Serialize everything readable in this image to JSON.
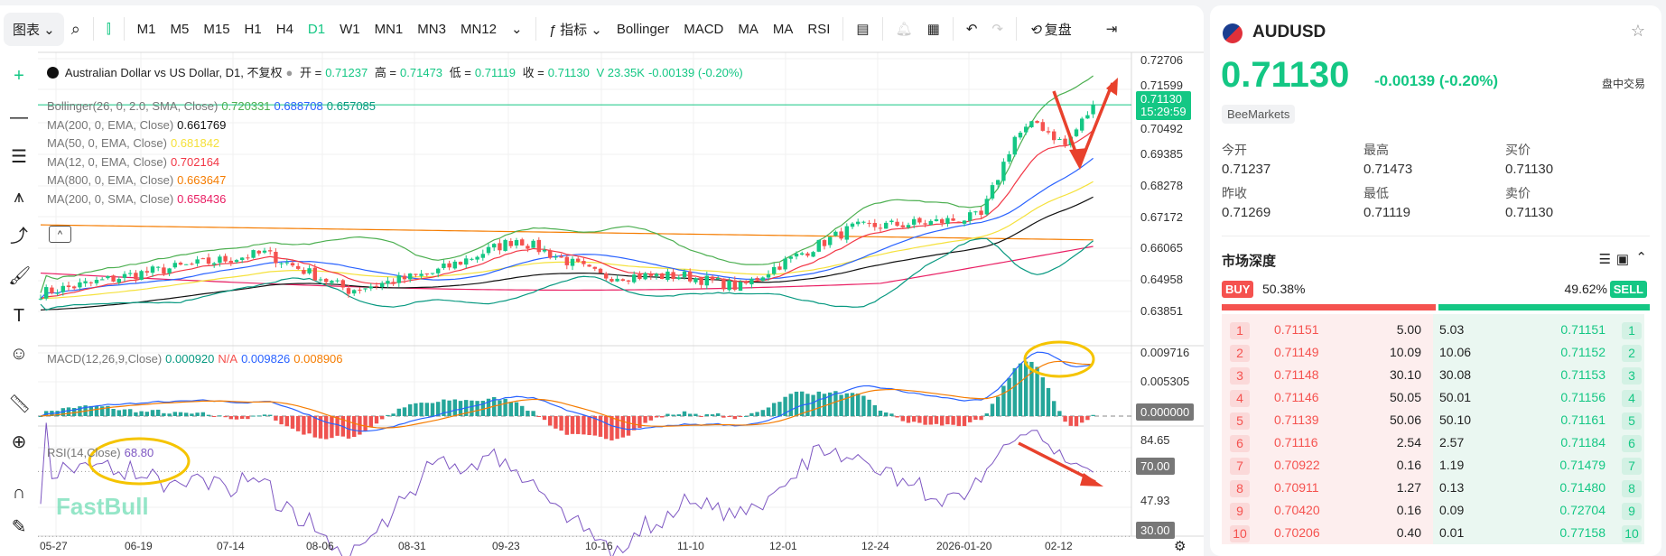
{
  "toolbar": {
    "chart_menu": "图表",
    "timeframes": [
      "M1",
      "M5",
      "M15",
      "H1",
      "H4",
      "D1",
      "W1",
      "MN1",
      "MN3",
      "MN12"
    ],
    "active_timeframe": "D1",
    "indicators_label": "指标",
    "quick_indicators": [
      "Bollinger",
      "MACD",
      "MA",
      "MA",
      "RSI"
    ],
    "replay_label": "复盘"
  },
  "legend": {
    "title": "Australian Dollar vs US Dollar, D1, 不复权",
    "open_label": "开 =",
    "open": "0.71237",
    "high_label": "高 =",
    "high": "0.71473",
    "low_label": "低 =",
    "low": "0.71119",
    "close_label": "收 =",
    "close": "0.71130",
    "volume": "V 23.35K",
    "change": "-0.00139 (-0.20%)"
  },
  "indicators": [
    {
      "label": "Bollinger(26, 0, 2.0, SMA, Close)",
      "values": [
        {
          "v": "0.720331",
          "c": "#4caf50"
        },
        {
          "v": "0.688708",
          "c": "#2962ff"
        },
        {
          "v": "0.657085",
          "c": "#089981"
        }
      ]
    },
    {
      "label": "MA(200, 0, EMA, Close)",
      "values": [
        {
          "v": "0.661769",
          "c": "#111111"
        }
      ]
    },
    {
      "label": "MA(50, 0, EMA, Close)",
      "values": [
        {
          "v": "0.681842",
          "c": "#f5e13b"
        }
      ]
    },
    {
      "label": "MA(12, 0, EMA, Close)",
      "values": [
        {
          "v": "0.702164",
          "c": "#f23645"
        }
      ]
    },
    {
      "label": "MA(800, 0, EMA, Close)",
      "values": [
        {
          "v": "0.663647",
          "c": "#f57c00"
        }
      ]
    },
    {
      "label": "MA(200, 0, SMA, Close)",
      "values": [
        {
          "v": "0.658436",
          "c": "#e91e63"
        }
      ]
    }
  ],
  "macd": {
    "label": "MACD(12,26,9,Close)",
    "hist": "0.000920",
    "na": "N/A",
    "macd": "0.009826",
    "signal": "0.008906"
  },
  "rsi": {
    "label": "RSI(14,Close)",
    "value": "68.80"
  },
  "price_axis": [
    "0.72706",
    "0.71599",
    "0.70492",
    "0.69385",
    "0.68278",
    "0.67172",
    "0.66065",
    "0.64958",
    "0.63851"
  ],
  "price_tag": {
    "price": "0.71130",
    "countdown": "15:29:59"
  },
  "macd_axis": [
    "0.009716",
    "0.005305"
  ],
  "macd_tag": "0.000000",
  "rsi_axis": [
    "84.65",
    "47.93"
  ],
  "rsi_tag_70": "70.00",
  "rsi_tag_30": "30.00",
  "dates": [
    "05-27",
    "06-19",
    "07-14",
    "08-06",
    "08-31",
    "09-23",
    "10-16",
    "11-10",
    "12-01",
    "12-24",
    "2026-01-20",
    "02-12"
  ],
  "watermark": "FastBull",
  "colors": {
    "up": "#14c784",
    "down": "#f5524f",
    "annotation_arrow": "#e8412c",
    "annotation_circle": "#f5c400"
  },
  "symbol": {
    "name": "AUDUSD",
    "price": "0.71130",
    "change": "-0.00139",
    "change_pct": "(-0.20%)",
    "session": "盘中交易",
    "broker": "BeeMarkets"
  },
  "stats": [
    {
      "label": "今开",
      "value": "0.71237"
    },
    {
      "label": "最高",
      "value": "0.71473"
    },
    {
      "label": "买价",
      "value": "0.71130"
    },
    {
      "label": "昨收",
      "value": "0.71269"
    },
    {
      "label": "最低",
      "value": "0.71119"
    },
    {
      "label": "卖价",
      "value": "0.71130"
    }
  ],
  "depth": {
    "title": "市场深度",
    "buy_label": "BUY",
    "buy_pct": "50.38%",
    "sell_label": "SELL",
    "sell_pct": "49.62%",
    "buy_ratio": 50.38,
    "rows": [
      {
        "n": "1",
        "bid": "0.71151",
        "bid_vol": "5.00",
        "ask_vol": "5.03",
        "ask": "0.71151"
      },
      {
        "n": "2",
        "bid": "0.71149",
        "bid_vol": "10.09",
        "ask_vol": "10.06",
        "ask": "0.71152"
      },
      {
        "n": "3",
        "bid": "0.71148",
        "bid_vol": "30.10",
        "ask_vol": "30.08",
        "ask": "0.71153"
      },
      {
        "n": "4",
        "bid": "0.71146",
        "bid_vol": "50.05",
        "ask_vol": "50.01",
        "ask": "0.71156"
      },
      {
        "n": "5",
        "bid": "0.71139",
        "bid_vol": "50.06",
        "ask_vol": "50.10",
        "ask": "0.71161"
      },
      {
        "n": "6",
        "bid": "0.71116",
        "bid_vol": "2.54",
        "ask_vol": "2.57",
        "ask": "0.71184"
      },
      {
        "n": "7",
        "bid": "0.70922",
        "bid_vol": "0.16",
        "ask_vol": "1.19",
        "ask": "0.71479"
      },
      {
        "n": "8",
        "bid": "0.70911",
        "bid_vol": "1.27",
        "ask_vol": "0.13",
        "ask": "0.71480"
      },
      {
        "n": "9",
        "bid": "0.70420",
        "bid_vol": "0.16",
        "ask_vol": "0.09",
        "ask": "0.72704"
      },
      {
        "n": "10",
        "bid": "0.70206",
        "bid_vol": "0.40",
        "ask_vol": "0.01",
        "ask": "0.77158"
      }
    ]
  }
}
